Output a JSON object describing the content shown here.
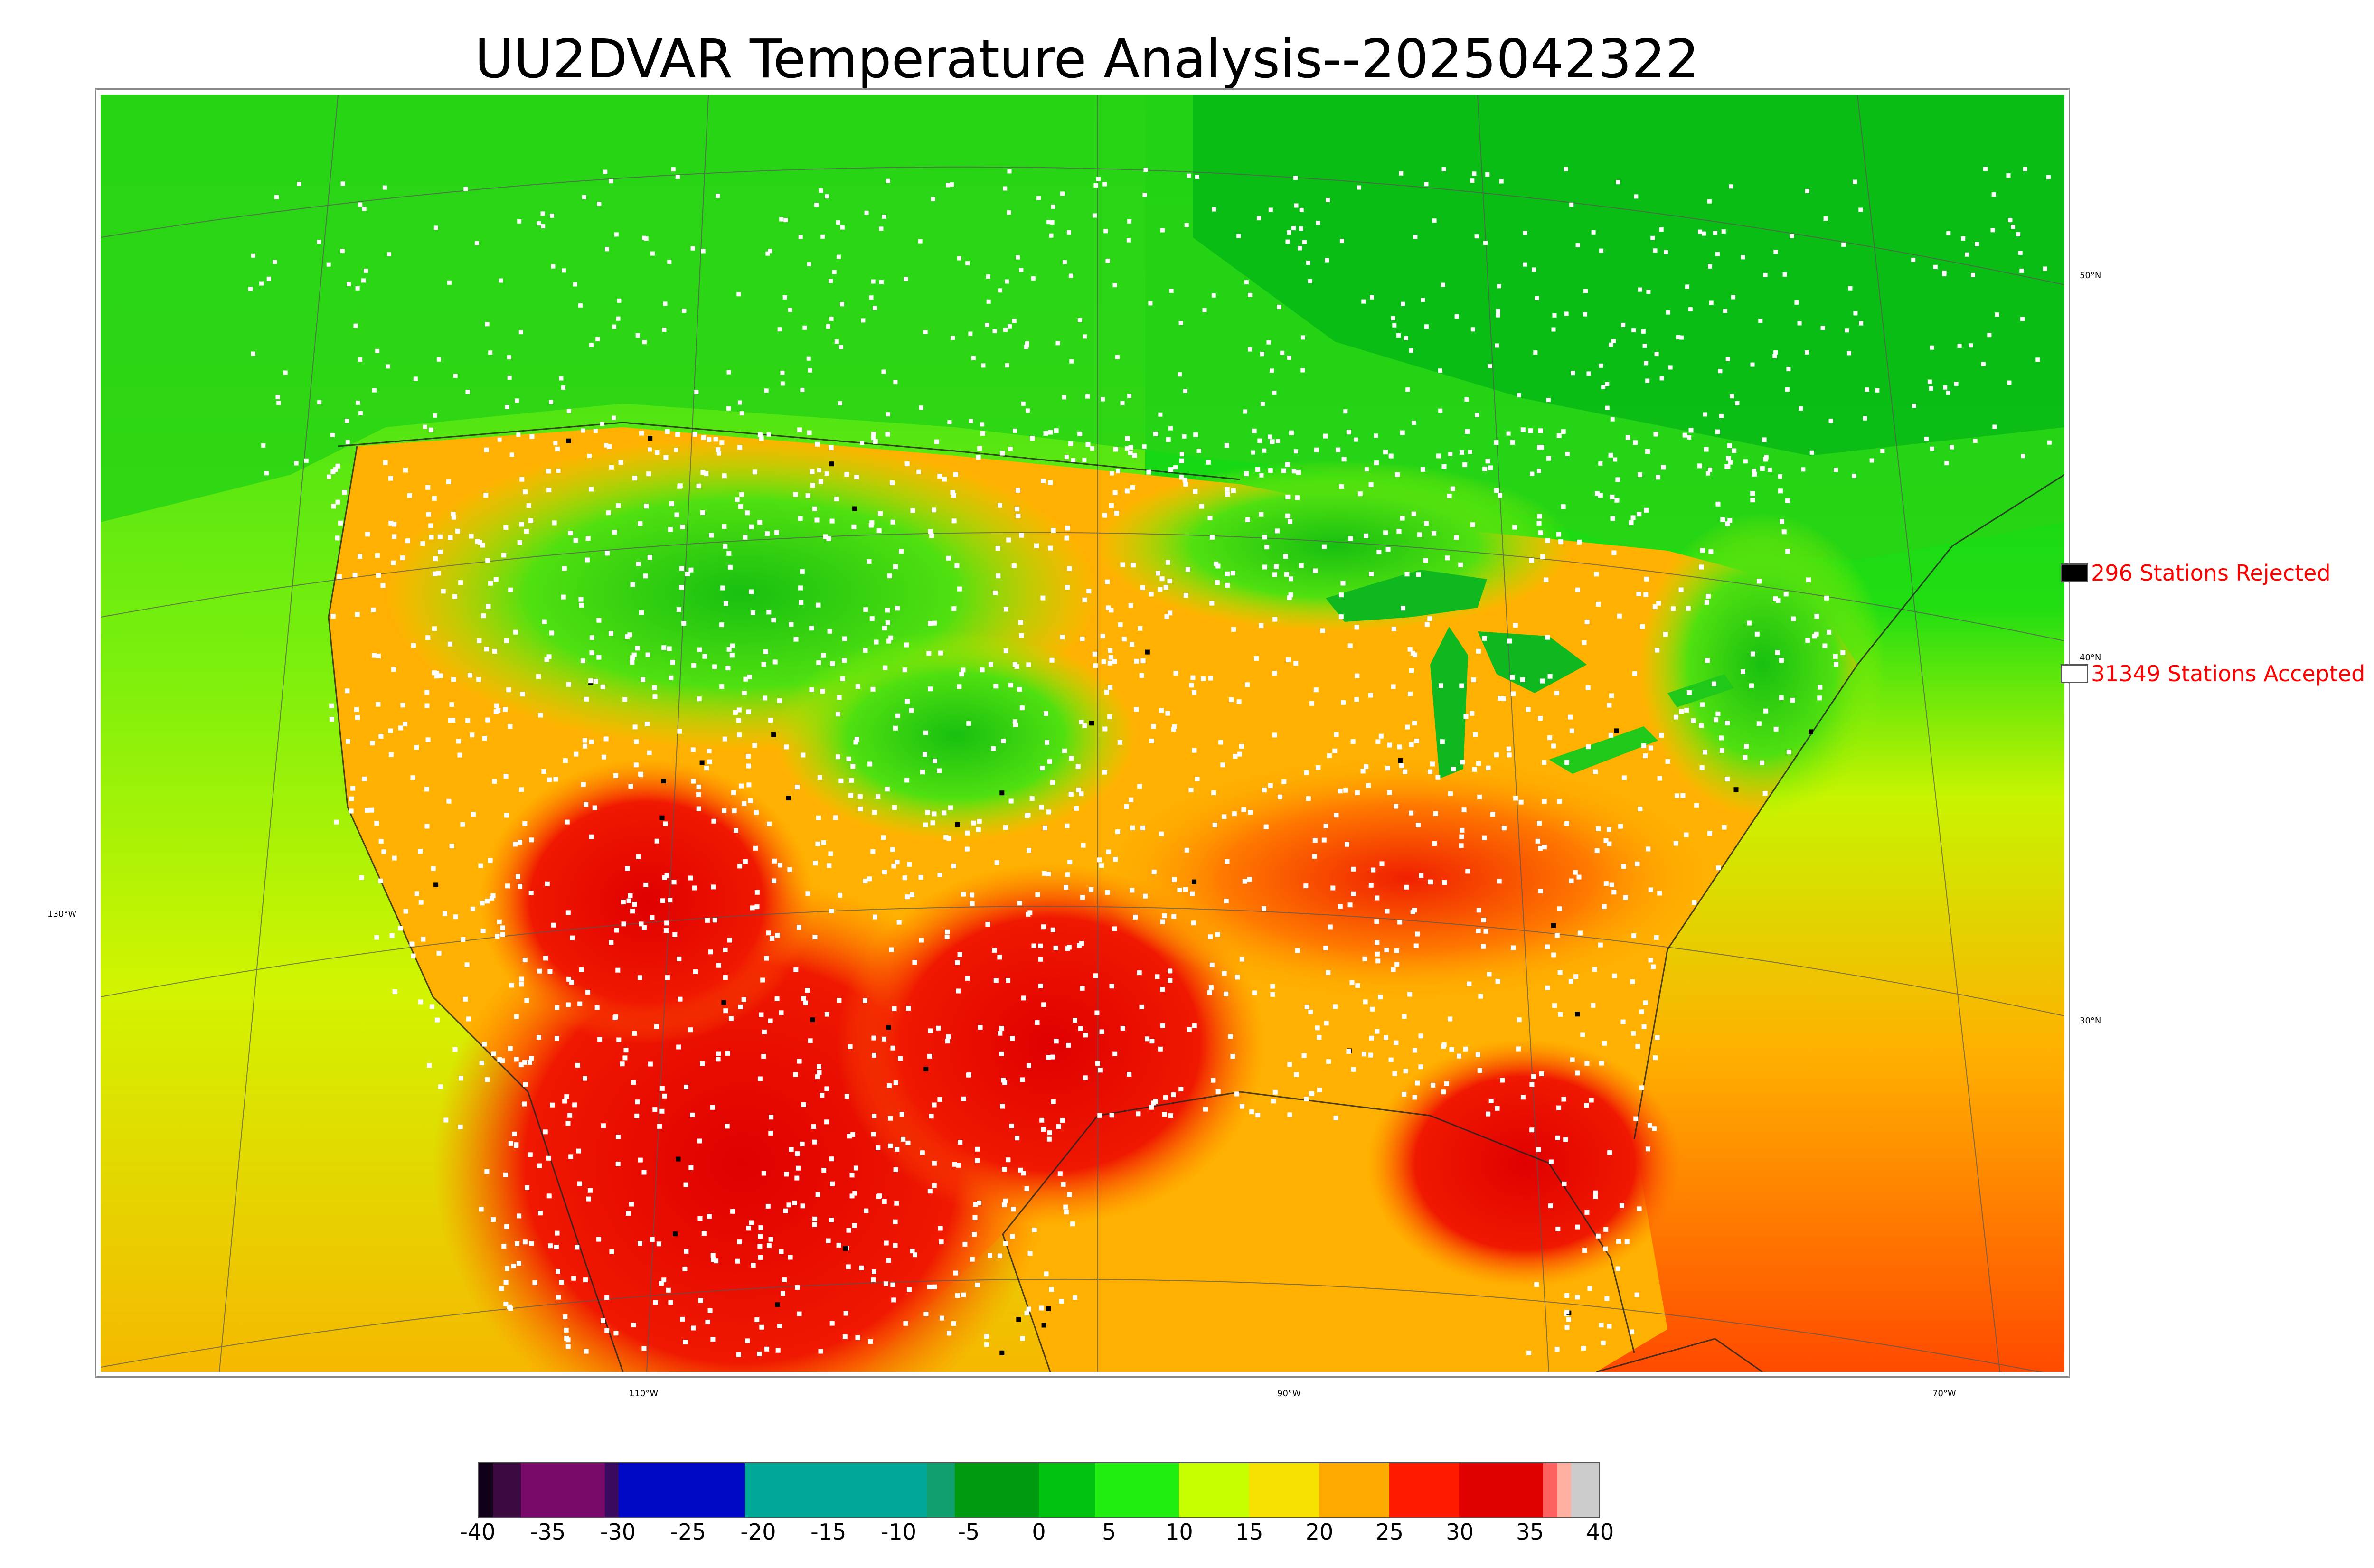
{
  "title": "UU2DVAR Temperature Analysis--2025042322",
  "legend": {
    "rejected": {
      "label": "296 Stations Rejected",
      "color": "#000000"
    },
    "accepted": {
      "label": "31349 Stations Accepted",
      "color": "#ffffff"
    }
  },
  "graticule": {
    "lat_labels": [
      "50°N",
      "40°N",
      "30°N"
    ],
    "lon_labels": [
      "130°W",
      "110°W",
      "90°W",
      "70°W"
    ]
  },
  "colorbar": {
    "ticks": [
      "-40",
      "-35",
      "-30",
      "-25",
      "-20",
      "-15",
      "-10",
      "-5",
      "0",
      "5",
      "10",
      "15",
      "20",
      "25",
      "30",
      "35",
      "40"
    ],
    "range": [
      -40,
      40
    ],
    "stops": [
      {
        "from": -40,
        "to": -39,
        "color": "#100018"
      },
      {
        "from": -39,
        "to": -37,
        "color": "#3a0a40"
      },
      {
        "from": -37,
        "to": -31,
        "color": "#7a0a6a"
      },
      {
        "from": -31,
        "to": -30,
        "color": "#3a0a60"
      },
      {
        "from": -30,
        "to": -21,
        "color": "#0008c8"
      },
      {
        "from": -21,
        "to": -8,
        "color": "#00a898"
      },
      {
        "from": -8,
        "to": -6,
        "color": "#10a070"
      },
      {
        "from": -6,
        "to": 0,
        "color": "#009a10"
      },
      {
        "from": 0,
        "to": 4,
        "color": "#00c010"
      },
      {
        "from": 4,
        "to": 10,
        "color": "#20ee10"
      },
      {
        "from": 10,
        "to": 15,
        "color": "#c8ff00"
      },
      {
        "from": 15,
        "to": 20,
        "color": "#f6e000"
      },
      {
        "from": 20,
        "to": 25,
        "color": "#ffaa00"
      },
      {
        "from": 25,
        "to": 30,
        "color": "#ff1a00"
      },
      {
        "from": 30,
        "to": 36,
        "color": "#e00000"
      },
      {
        "from": 36,
        "to": 37,
        "color": "#ff6060"
      },
      {
        "from": 37,
        "to": 38,
        "color": "#ffb0a0"
      },
      {
        "from": 38,
        "to": 40,
        "color": "#cccccc"
      }
    ]
  }
}
